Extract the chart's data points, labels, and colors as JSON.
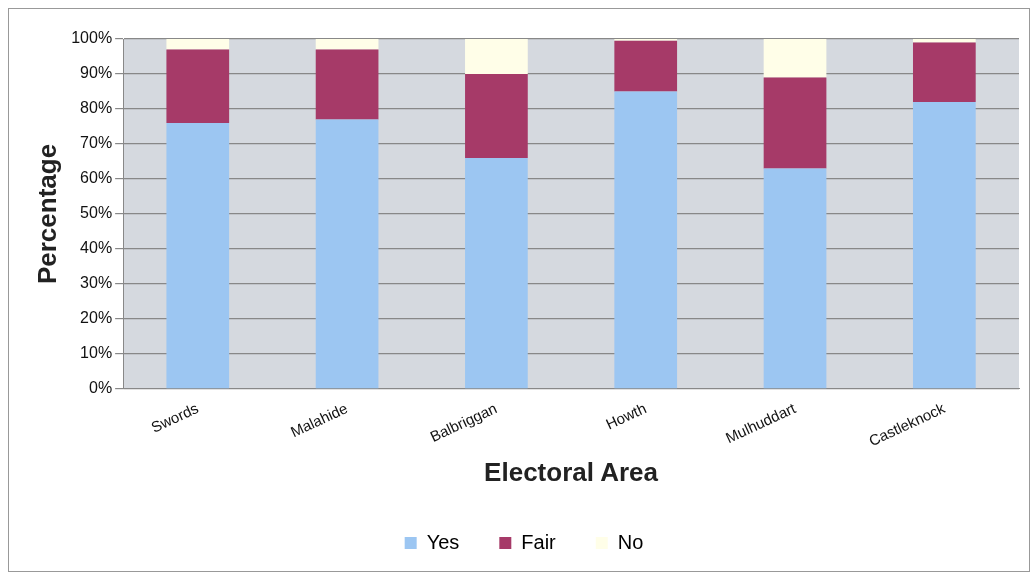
{
  "chart_data": {
    "type": "bar",
    "stacked": true,
    "xlabel": "Electoral Area",
    "ylabel": "Percentage",
    "categories": [
      "Swords",
      "Malahide",
      "Balbriggan",
      "Howth",
      "Mulhuddart",
      "Castleknock"
    ],
    "series": [
      {
        "name": "Yes",
        "color": "#9cc6f2",
        "values": [
          76,
          77,
          66,
          85,
          63,
          82
        ]
      },
      {
        "name": "Fair",
        "color": "#a63a68",
        "values": [
          21,
          20,
          24,
          14.5,
          26,
          17
        ]
      },
      {
        "name": "No",
        "color": "#fffee8",
        "values": [
          3,
          3,
          10,
          0.5,
          11,
          1
        ]
      }
    ],
    "ylim": [
      0,
      100
    ],
    "yticks": [
      {
        "value": 0,
        "label": "0%"
      },
      {
        "value": 10,
        "label": "10%"
      },
      {
        "value": 20,
        "label": "20%"
      },
      {
        "value": 30,
        "label": "30%"
      },
      {
        "value": 40,
        "label": "40%"
      },
      {
        "value": 50,
        "label": "50%"
      },
      {
        "value": 60,
        "label": "60%"
      },
      {
        "value": 70,
        "label": "70%"
      },
      {
        "value": 80,
        "label": "80%"
      },
      {
        "value": 90,
        "label": "90%"
      },
      {
        "value": 100,
        "label": "100%"
      }
    ],
    "grid": "y",
    "legend": "bottom"
  }
}
